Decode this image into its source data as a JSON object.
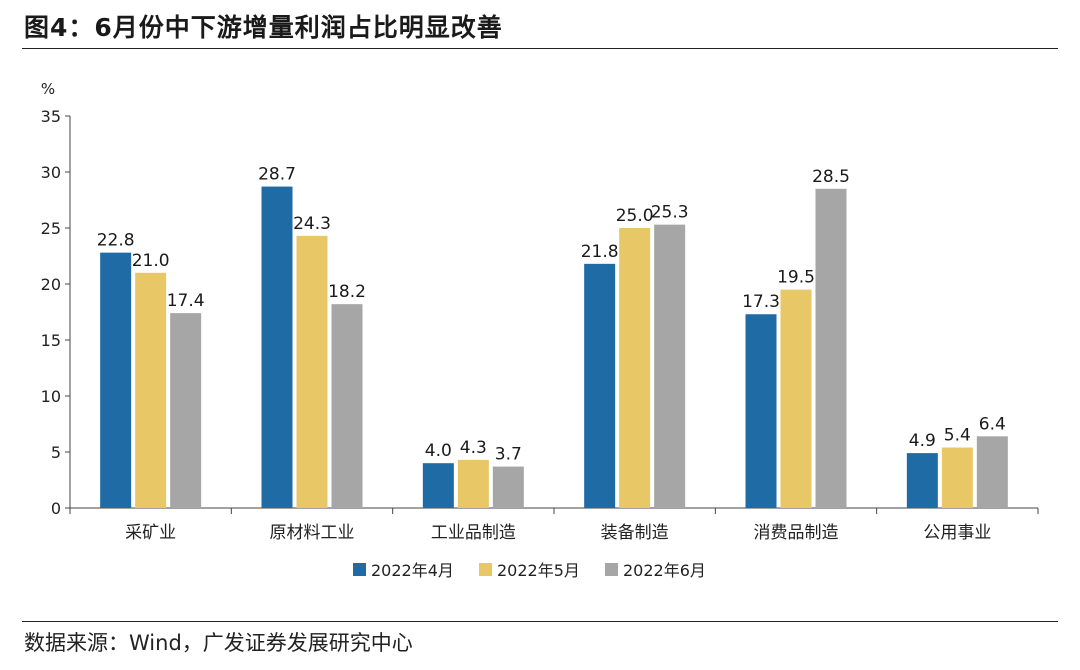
{
  "page": {
    "figure_title": "图4：6月份中下游增量利润占比明显改善",
    "source": "数据来源：Wind，广发证券发展研究中心"
  },
  "chart_data": {
    "type": "bar",
    "title": "图4：6月份中下游增量利润占比明显改善",
    "ylabel": "%",
    "xlabel": "",
    "ylim": [
      0,
      35
    ],
    "yticks": [
      0,
      5,
      10,
      15,
      20,
      25,
      30,
      35
    ],
    "grid": false,
    "legend_position": "bottom-center",
    "categories": [
      "采矿业",
      "原材料工业",
      "工业品制造",
      "装备制造",
      "消费品制造",
      "公用事业"
    ],
    "series": [
      {
        "name": "2022年4月",
        "color": "#1f6ba5",
        "values": [
          22.8,
          28.7,
          4.0,
          21.8,
          17.3,
          4.9
        ]
      },
      {
        "name": "2022年5月",
        "color": "#e8c766",
        "values": [
          21.0,
          24.3,
          4.3,
          25.0,
          19.5,
          5.4
        ]
      },
      {
        "name": "2022年6月",
        "color": "#a6a6a6",
        "values": [
          17.4,
          18.2,
          3.7,
          25.3,
          28.5,
          6.4
        ]
      }
    ]
  }
}
